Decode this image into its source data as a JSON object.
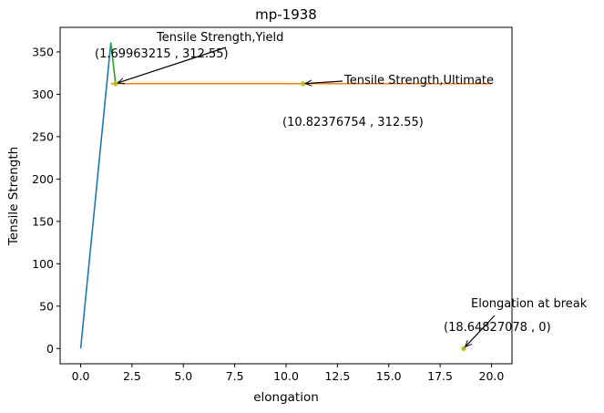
{
  "chart_data": {
    "type": "line",
    "title": "mp-1938",
    "xlabel": "elongation",
    "ylabel": "Tensile Strength",
    "xlim": [
      -1.0,
      21.0
    ],
    "ylim": [
      -18.0,
      379.0
    ],
    "x_ticks": [
      0.0,
      2.5,
      5.0,
      7.5,
      10.0,
      12.5,
      15.0,
      17.5,
      20.0
    ],
    "x_tick_labels": [
      "0.0",
      "2.5",
      "5.0",
      "7.5",
      "10.0",
      "12.5",
      "15.0",
      "17.5",
      "20.0"
    ],
    "y_ticks": [
      0,
      50,
      100,
      150,
      200,
      250,
      300,
      350
    ],
    "y_tick_labels": [
      "0",
      "50",
      "100",
      "150",
      "200",
      "250",
      "300",
      "350"
    ],
    "grid": false,
    "legend": "none",
    "series": [
      {
        "color": "#1f77b4",
        "x": [
          0.0,
          1.47
        ],
        "y": [
          0.0,
          361.0
        ]
      },
      {
        "color": "#ff7f0e",
        "x": [
          1.47,
          1.69963215,
          10.82376754,
          20.0
        ],
        "y": [
          312.55,
          312.55,
          312.55,
          312.55
        ]
      },
      {
        "color": "#2ca02c",
        "x": [
          1.47,
          1.69963215
        ],
        "y": [
          361.0,
          312.55
        ]
      }
    ],
    "points": [
      {
        "x": 1.69963215,
        "y": 312.55,
        "color": "#bcbd22"
      },
      {
        "x": 10.82376754,
        "y": 312.55,
        "color": "#bcbd22"
      },
      {
        "x": 18.64827078,
        "y": 0,
        "color": "#bcbd22"
      }
    ],
    "annotations": [
      {
        "label": "Tensile Strength,Yield",
        "coords": "(1.69963215 , 312.55)",
        "x": 1.69963215,
        "y": 312.55
      },
      {
        "label": "Tensile Strength,Ultimate",
        "coords": "(10.82376754 , 312.55)",
        "x": 10.82376754,
        "y": 312.55
      },
      {
        "label": "Elongation at break",
        "coords": "(18.64827078 , 0)",
        "x": 18.64827078,
        "y": 0
      }
    ]
  }
}
